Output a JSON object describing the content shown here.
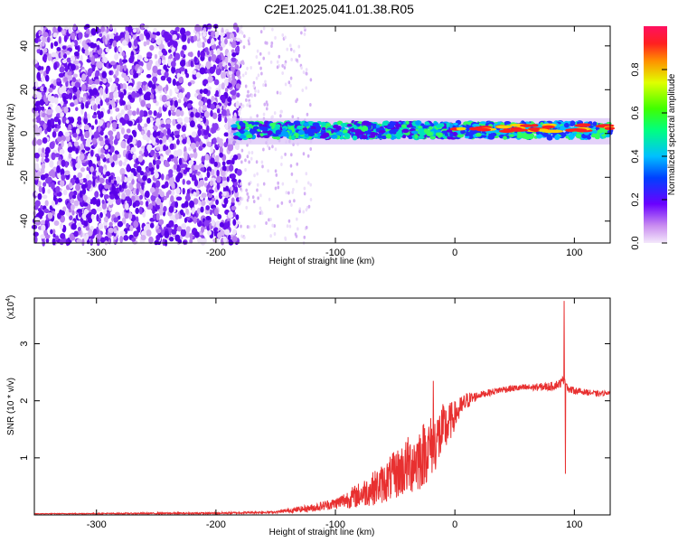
{
  "title": "C2E1.2025.041.01.38.R05",
  "chart_data": [
    {
      "type": "heatmap",
      "xlabel": "Height of straight line (km)",
      "ylabel": "Frequency (Hz)",
      "xlim": [
        -352,
        130
      ],
      "ylim": [
        -50,
        49
      ],
      "xticks": [
        -300,
        -200,
        -100,
        0,
        100
      ],
      "yticks": [
        -40,
        -20,
        0,
        20,
        40
      ],
      "colorbar": {
        "label": "Normalized spectral amplitude",
        "range": [
          0,
          1
        ],
        "ticks": [
          0.0,
          0.2,
          0.4,
          0.6,
          0.8
        ]
      },
      "description_regions": [
        {
          "x_range": [
            -352,
            -180
          ],
          "y_range": [
            -50,
            49
          ],
          "amplitude": 0.15
        },
        {
          "x_range": [
            -180,
            130
          ],
          "y_range": [
            -3,
            6
          ],
          "amplitude": 0.45
        },
        {
          "x_range": [
            0,
            130
          ],
          "y_range": [
            0,
            4
          ],
          "amplitude": 0.95
        }
      ]
    },
    {
      "type": "line",
      "xlabel": "Height of straight line (km)",
      "ylabel": "SNR (10 * v/v)",
      "y_multiplier": "(x10",
      "y_multiplier_exp": "4",
      "y_multiplier_close": ")",
      "xlim": [
        -352,
        130
      ],
      "ylim": [
        0,
        3.8
      ],
      "xticks": [
        -300,
        -200,
        -100,
        0,
        100
      ],
      "yticks": [
        1,
        2,
        3
      ],
      "series": [
        {
          "color": "#e83030",
          "envelope": {
            "x": [
              -352,
              -200,
              -150,
              -120,
              -100,
              -80,
              -60,
              -50,
              -40,
              -30,
              -20,
              -10,
              0,
              10,
              20,
              30,
              40,
              50,
              60,
              70,
              80,
              88,
              92,
              95,
              100,
              110,
              120,
              130
            ],
            "y": [
              0.02,
              0.03,
              0.05,
              0.12,
              0.2,
              0.35,
              0.55,
              0.7,
              0.85,
              1.0,
              1.2,
              1.45,
              1.75,
              2.0,
              2.1,
              2.15,
              2.2,
              2.22,
              2.23,
              2.24,
              2.25,
              2.3,
              2.4,
              2.2,
              2.18,
              2.15,
              2.12,
              2.15
            ]
          },
          "noise": {
            "x": [
              -352,
              -150,
              -100,
              -60,
              -30,
              -10,
              0,
              20,
              60,
              85,
              100,
              130
            ],
            "amp": [
              0.005,
              0.02,
              0.1,
              0.35,
              0.6,
              0.5,
              0.25,
              0.06,
              0.06,
              0.08,
              0.06,
              0.04
            ]
          },
          "spikes": [
            {
              "x": -18,
              "y": 2.35
            },
            {
              "x": 91.5,
              "y": 3.75
            },
            {
              "x": 92.5,
              "y": 0.72
            }
          ]
        }
      ]
    }
  ]
}
